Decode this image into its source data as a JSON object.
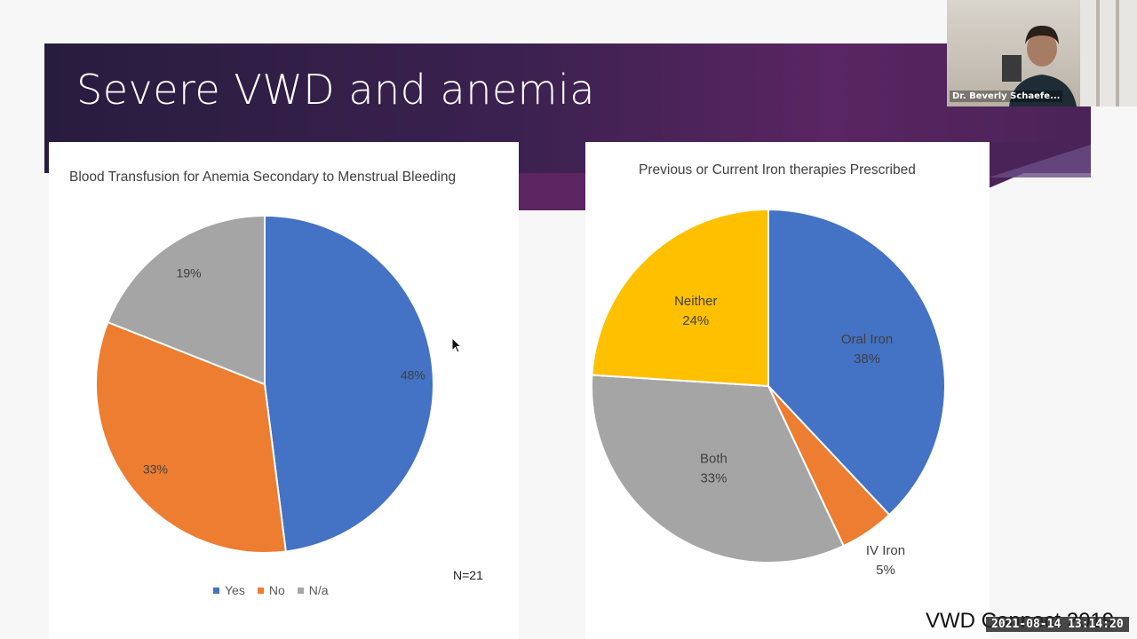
{
  "slide": {
    "title": "Severe VWD and anemia",
    "footer": "VWD Connect 2019",
    "n_label": "N=21"
  },
  "webcam": {
    "speaker_name": "Dr. Beverly Schaefe..."
  },
  "timestamp": "2021-08-14 13:14:20",
  "colors": {
    "blue": "#4472c4",
    "orange": "#ed7d31",
    "gray": "#a5a5a5",
    "yellow": "#ffc000",
    "banner": "#3b2150"
  },
  "chart_data": [
    {
      "type": "pie",
      "title": "Blood Transfusion for Anemia Secondary to Menstrual Bleeding",
      "categories": [
        "Yes",
        "No",
        "N/a"
      ],
      "values": [
        48,
        33,
        19
      ],
      "labels": [
        "48%",
        "33%",
        "19%"
      ],
      "legend": [
        "Yes",
        "No",
        "N/a"
      ],
      "legend_position": "bottom"
    },
    {
      "type": "pie",
      "title": "Previous or Current Iron therapies Prescribed",
      "categories": [
        "Oral Iron",
        "IV Iron",
        "Both",
        "Neither"
      ],
      "values": [
        38,
        5,
        33,
        24
      ],
      "labels": [
        "38%",
        "5%",
        "33%",
        "24%"
      ]
    }
  ]
}
